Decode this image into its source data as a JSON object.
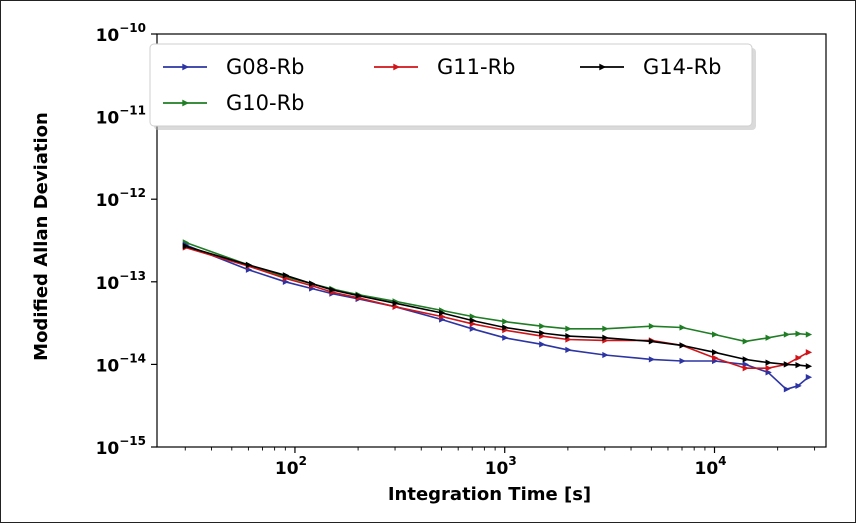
{
  "chart_data": {
    "type": "line",
    "xlabel": "Integration Time [s]",
    "ylabel": "Modified Allan Deviation",
    "x_scale": "log",
    "y_scale": "log",
    "xlim": [
      22,
      34000
    ],
    "ylim": [
      1e-15,
      1e-10
    ],
    "x_ticks": [
      {
        "value": 100,
        "base": "10",
        "exp": "2"
      },
      {
        "value": 1000,
        "base": "10",
        "exp": "3"
      },
      {
        "value": 10000,
        "base": "10",
        "exp": "4"
      }
    ],
    "y_ticks": [
      {
        "value": 1e-10,
        "base": "10",
        "exp": "−10"
      },
      {
        "value": 1e-11,
        "base": "10",
        "exp": "−11"
      },
      {
        "value": 1e-12,
        "base": "10",
        "exp": "−12"
      },
      {
        "value": 1e-13,
        "base": "10",
        "exp": "−13"
      },
      {
        "value": 1e-14,
        "base": "10",
        "exp": "−14"
      },
      {
        "value": 1e-15,
        "base": "10",
        "exp": "−15"
      }
    ],
    "grid": false,
    "legend_position": "top-left",
    "legend_columns": 3,
    "series": [
      {
        "name": "G08-Rb",
        "color": "#2c35a3",
        "marker": "right-triangle",
        "points": [
          [
            30,
            2.8e-13
          ],
          [
            60,
            1.4e-13
          ],
          [
            90,
            1e-13
          ],
          [
            120,
            8.3e-14
          ],
          [
            150,
            7.2e-14
          ],
          [
            200,
            6.2e-14
          ],
          [
            300,
            5e-14
          ],
          [
            500,
            3.5e-14
          ],
          [
            700,
            2.7e-14
          ],
          [
            1000,
            2.1e-14
          ],
          [
            1500,
            1.75e-14
          ],
          [
            2000,
            1.5e-14
          ],
          [
            3000,
            1.3e-14
          ],
          [
            5000,
            1.15e-14
          ],
          [
            7000,
            1.1e-14
          ],
          [
            10000,
            1.1e-14
          ],
          [
            14000,
            1e-14
          ],
          [
            18000,
            8e-15
          ],
          [
            22000,
            5e-15
          ],
          [
            25000,
            5.5e-15
          ],
          [
            28000,
            7e-15
          ]
        ]
      },
      {
        "name": "G11-Rb",
        "color": "#d01419",
        "marker": "right-triangle",
        "points": [
          [
            30,
            2.6e-13
          ],
          [
            60,
            1.55e-13
          ],
          [
            90,
            1.1e-13
          ],
          [
            120,
            9e-14
          ],
          [
            150,
            7.5e-14
          ],
          [
            200,
            6.4e-14
          ],
          [
            300,
            5e-14
          ],
          [
            500,
            3.8e-14
          ],
          [
            700,
            3.1e-14
          ],
          [
            1000,
            2.6e-14
          ],
          [
            1500,
            2.2e-14
          ],
          [
            2000,
            2e-14
          ],
          [
            3000,
            1.95e-14
          ],
          [
            5000,
            1.95e-14
          ],
          [
            7000,
            1.7e-14
          ],
          [
            10000,
            1.2e-14
          ],
          [
            14000,
            9e-15
          ],
          [
            18000,
            9e-15
          ],
          [
            22000,
            1e-14
          ],
          [
            25000,
            1.2e-14
          ],
          [
            28000,
            1.4e-14
          ]
        ]
      },
      {
        "name": "G14-Rb",
        "color": "#000000",
        "marker": "right-triangle",
        "points": [
          [
            30,
            2.7e-13
          ],
          [
            60,
            1.6e-13
          ],
          [
            90,
            1.2e-13
          ],
          [
            120,
            9.5e-14
          ],
          [
            150,
            8e-14
          ],
          [
            200,
            6.8e-14
          ],
          [
            300,
            5.5e-14
          ],
          [
            500,
            4.2e-14
          ],
          [
            700,
            3.4e-14
          ],
          [
            1000,
            2.8e-14
          ],
          [
            1500,
            2.4e-14
          ],
          [
            2000,
            2.2e-14
          ],
          [
            3000,
            2.1e-14
          ],
          [
            5000,
            1.9e-14
          ],
          [
            7000,
            1.7e-14
          ],
          [
            10000,
            1.4e-14
          ],
          [
            14000,
            1.15e-14
          ],
          [
            18000,
            1.05e-14
          ],
          [
            22000,
            1e-14
          ],
          [
            25000,
            9.8e-15
          ],
          [
            28000,
            9.5e-15
          ]
        ]
      },
      {
        "name": "G10-Rb",
        "color": "#1f7d24",
        "marker": "right-triangle",
        "points": [
          [
            30,
            3e-13
          ],
          [
            60,
            1.6e-13
          ],
          [
            90,
            1.15e-13
          ],
          [
            120,
            9.5e-14
          ],
          [
            150,
            8.2e-14
          ],
          [
            200,
            7e-14
          ],
          [
            300,
            5.8e-14
          ],
          [
            500,
            4.5e-14
          ],
          [
            700,
            3.8e-14
          ],
          [
            1000,
            3.3e-14
          ],
          [
            1500,
            2.9e-14
          ],
          [
            2000,
            2.7e-14
          ],
          [
            3000,
            2.7e-14
          ],
          [
            5000,
            2.9e-14
          ],
          [
            7000,
            2.8e-14
          ],
          [
            10000,
            2.3e-14
          ],
          [
            14000,
            1.9e-14
          ],
          [
            18000,
            2.1e-14
          ],
          [
            22000,
            2.3e-14
          ],
          [
            25000,
            2.35e-14
          ],
          [
            28000,
            2.3e-14
          ]
        ]
      }
    ]
  }
}
